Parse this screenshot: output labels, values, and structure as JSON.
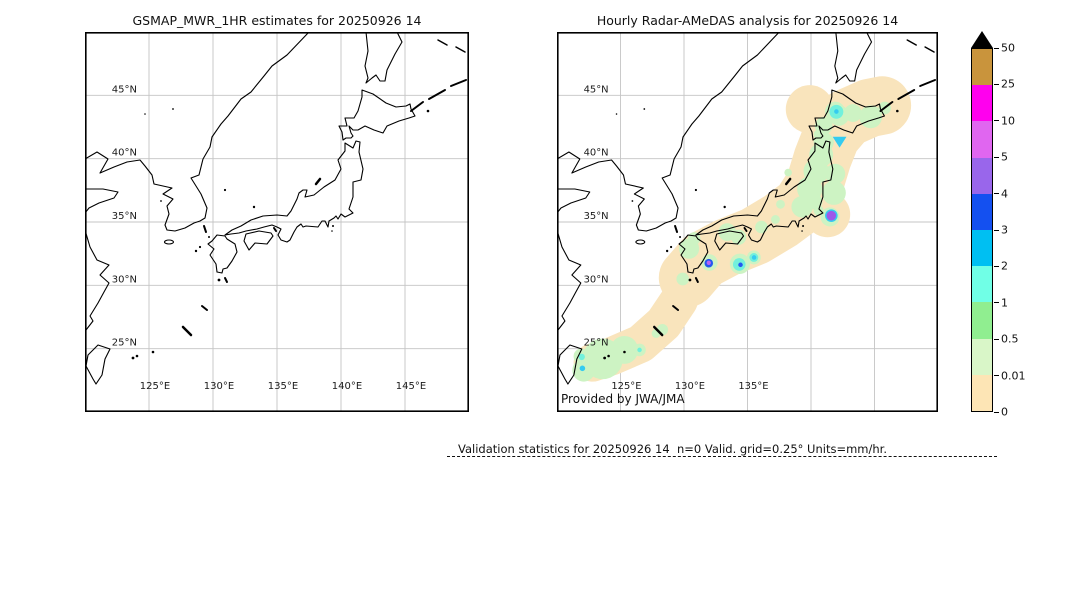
{
  "panels": {
    "left": {
      "title": "GSMAP_MWR_1HR estimates for 20250926 14",
      "lat_labels": [
        "45°N",
        "40°N",
        "35°N",
        "30°N",
        "25°N"
      ],
      "lon_labels": [
        "125°E",
        "130°E",
        "135°E",
        "140°E",
        "145°E"
      ]
    },
    "right": {
      "title": "Hourly Radar-AMeDAS analysis for 20250926 14",
      "lat_labels": [
        "45°N",
        "40°N",
        "35°N",
        "30°N",
        "25°N"
      ],
      "lon_labels": [
        "125°E",
        "130°E",
        "135°E"
      ],
      "credit": "Provided by JWA/JMA"
    }
  },
  "caption": "Validation statistics for 20250926 14  n=0 Valid. grid=0.25° Units=mm/hr.",
  "geo": {
    "lon_min": 120,
    "lon_max": 150,
    "lat_min": 20,
    "lat_max": 50,
    "grid_lons": [
      125,
      130,
      135,
      140,
      145
    ],
    "grid_lats": [
      45,
      40,
      35,
      30,
      25
    ],
    "gridline_color": "#c4c4c4"
  },
  "colorbar": {
    "overflow_color": "#000000",
    "tick_labels_bottom_up": [
      "0",
      "0.01",
      "0.5",
      "1",
      "2",
      "3",
      "4",
      "5",
      "10",
      "25",
      "50"
    ],
    "segments_bottom_up": [
      {
        "from": 0,
        "to": 0.01,
        "color": "#fde5b5"
      },
      {
        "from": 0.01,
        "to": 0.5,
        "color": "#d9f6c8"
      },
      {
        "from": 0.5,
        "to": 1,
        "color": "#90ee90"
      },
      {
        "from": 1,
        "to": 2,
        "color": "#70ffe6"
      },
      {
        "from": 2,
        "to": 3,
        "color": "#00bff2"
      },
      {
        "from": 3,
        "to": 4,
        "color": "#1450f0"
      },
      {
        "from": 4,
        "to": 5,
        "color": "#9966eb"
      },
      {
        "from": 5,
        "to": 10,
        "color": "#e066f0"
      },
      {
        "from": 10,
        "to": 25,
        "color": "#ff00ee"
      },
      {
        "from": 25,
        "to": 50,
        "color": "#c9943c"
      }
    ]
  },
  "map_overlay": {
    "band_color": "#f9e4bc",
    "light_color": "#cdf3c3",
    "band_strokes": [
      {
        "width_deg": 3.0,
        "pts": [
          [
            122.8,
            23.9
          ],
          [
            124.3,
            24.4
          ],
          [
            126.6,
            25.4
          ],
          [
            128.4,
            27.0
          ],
          [
            129.6,
            28.8
          ],
          [
            130.3,
            30.6
          ]
        ]
      },
      {
        "width_deg": 4.6,
        "pts": [
          [
            130.3,
            30.6
          ],
          [
            131.5,
            32.0
          ],
          [
            133.4,
            33.0
          ],
          [
            135.6,
            33.9
          ],
          [
            137.6,
            35.1
          ],
          [
            139.2,
            36.3
          ],
          [
            140.3,
            38.0
          ],
          [
            140.9,
            40.0
          ],
          [
            141.6,
            41.8
          ],
          [
            142.8,
            43.2
          ],
          [
            144.6,
            44.0
          ],
          [
            145.6,
            44.2
          ]
        ]
      }
    ],
    "band_blobs": [
      {
        "lon": 139.9,
        "lat": 43.9,
        "r_deg": 1.9
      },
      {
        "lon": 141.3,
        "lat": 35.6,
        "r_deg": 1.8
      }
    ],
    "light_patches": [
      [
        123.6,
        24.2,
        1.6
      ],
      [
        125.3,
        24.9,
        1.1
      ],
      [
        122.1,
        23.3,
        0.9
      ],
      [
        121.9,
        24.4,
        0.6
      ],
      [
        126.5,
        24.9,
        0.5
      ],
      [
        128.3,
        26.5,
        0.45
      ],
      [
        127.8,
        26.2,
        0.35
      ],
      [
        130.4,
        32.9,
        0.8
      ],
      [
        129.9,
        30.5,
        0.5
      ],
      [
        130.8,
        33.7,
        0.5
      ],
      [
        133.4,
        34.2,
        0.7
      ],
      [
        134.3,
        33.8,
        0.6
      ],
      [
        132.0,
        31.8,
        0.65
      ],
      [
        134.4,
        31.7,
        0.8
      ],
      [
        135.5,
        32.2,
        0.55
      ],
      [
        136.1,
        34.6,
        0.5
      ],
      [
        137.2,
        35.2,
        0.35
      ],
      [
        137.6,
        36.4,
        0.35
      ],
      [
        138.2,
        38.9,
        0.3
      ],
      [
        139.3,
        36.2,
        0.85
      ],
      [
        139.9,
        37.6,
        1.0
      ],
      [
        140.4,
        39.0,
        1.0
      ],
      [
        140.8,
        40.3,
        0.95
      ],
      [
        141.0,
        41.3,
        0.8
      ],
      [
        141.8,
        37.3,
        0.95
      ],
      [
        141.9,
        38.8,
        0.8
      ],
      [
        140.3,
        36.6,
        0.6
      ],
      [
        141.5,
        35.4,
        0.75
      ],
      [
        140.6,
        35.9,
        0.4
      ],
      [
        141.0,
        42.6,
        0.7
      ],
      [
        142.2,
        43.4,
        0.8
      ],
      [
        143.3,
        43.6,
        0.7
      ],
      [
        144.7,
        43.3,
        0.9
      ],
      [
        145.8,
        44.0,
        0.5
      ],
      [
        141.9,
        43.7,
        0.8
      ],
      [
        140.6,
        41.9,
        0.4
      ]
    ],
    "spots": [
      {
        "lon": 142.0,
        "lat": 43.7,
        "r_deg": 0.55,
        "color": "#72f0dc",
        "level": "1-2"
      },
      {
        "lon": 134.35,
        "lat": 31.65,
        "r_deg": 0.5,
        "color": "#72f0dc",
        "level": "1-2"
      },
      {
        "lon": 135.5,
        "lat": 32.2,
        "r_deg": 0.35,
        "color": "#72f0dc",
        "level": "1-2"
      },
      {
        "lon": 121.95,
        "lat": 24.35,
        "r_deg": 0.25,
        "color": "#72f0dc",
        "level": "1-2"
      },
      {
        "lon": 126.5,
        "lat": 24.9,
        "r_deg": 0.18,
        "color": "#72f0dc",
        "level": "1-2"
      },
      {
        "lon": 142.25,
        "lat": 41.35,
        "r_deg": 0.5,
        "color": "#35cbf0",
        "shape": "triangle",
        "level": "2-3"
      },
      {
        "lon": 142.0,
        "lat": 43.72,
        "r_deg": 0.18,
        "color": "#35cbf0",
        "level": "2-3"
      },
      {
        "lon": 135.52,
        "lat": 32.2,
        "r_deg": 0.18,
        "color": "#35cbf0",
        "level": "2-3"
      },
      {
        "lon": 122.0,
        "lat": 23.45,
        "r_deg": 0.22,
        "color": "#35cbf0",
        "level": "2-3"
      },
      {
        "lon": 141.6,
        "lat": 35.5,
        "r_deg": 0.5,
        "color": "#35cbf0",
        "level": "2-3"
      },
      {
        "lon": 131.95,
        "lat": 31.75,
        "r_deg": 0.34,
        "color": "#2458f0",
        "level": "3-4"
      },
      {
        "lon": 134.45,
        "lat": 31.62,
        "r_deg": 0.18,
        "color": "#2458f0",
        "level": "3-4"
      },
      {
        "lon": 141.6,
        "lat": 35.5,
        "r_deg": 0.38,
        "color": "#9d59ea",
        "level": "4-5"
      },
      {
        "lon": 131.95,
        "lat": 31.78,
        "r_deg": 0.17,
        "color": "#b765f2",
        "level": "5-10"
      }
    ]
  },
  "chart_data": {
    "type": "map",
    "projection": "equirectangular",
    "extent": {
      "lon": [
        120,
        150
      ],
      "lat": [
        20,
        50
      ]
    },
    "datetime": "20250926 14",
    "units": "mm/hr",
    "grid_resolution": "0.25°",
    "valid_n": 0,
    "panels": [
      {
        "title": "GSMAP_MWR_1HR estimates for 20250926 14",
        "content": "no data plotted (n=0)"
      },
      {
        "title": "Hourly Radar-AMeDAS analysis for 20250926 14",
        "content": "precipitation analysis band along Japanese archipelago from Yaeyama/Okinawa to Hokkaido"
      }
    ],
    "colorscale_levels": [
      0,
      0.01,
      0.5,
      1,
      2,
      3,
      4,
      5,
      10,
      25,
      50
    ],
    "colorscale_colors_bottom_up": [
      "#fde5b5",
      "#d9f6c8",
      "#90ee90",
      "#70ffe6",
      "#00bff2",
      "#1450f0",
      "#9966eb",
      "#e066f0",
      "#ff00ee",
      "#c9943c"
    ],
    "overflow_color": "#000000"
  }
}
